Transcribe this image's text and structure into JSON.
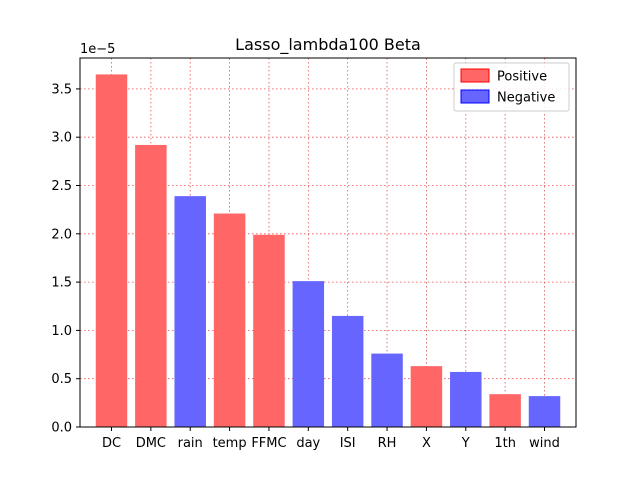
{
  "chart_data": {
    "type": "bar",
    "title": "Lasso_lambda100 Beta",
    "xlabel": "",
    "ylabel": "",
    "y_offset_text": "1e−5",
    "categories": [
      "DC",
      "DMC",
      "rain",
      "temp",
      "FFMC",
      "day",
      "ISI",
      "RH",
      "X",
      "Y",
      "1th",
      "wind"
    ],
    "values": [
      3.65,
      2.92,
      2.39,
      2.21,
      1.99,
      1.51,
      1.15,
      0.76,
      0.63,
      0.57,
      0.34,
      0.32
    ],
    "value_scale": "1e-5",
    "signs": [
      "Positive",
      "Positive",
      "Negative",
      "Positive",
      "Positive",
      "Negative",
      "Negative",
      "Negative",
      "Positive",
      "Negative",
      "Positive",
      "Negative"
    ],
    "ylim": [
      0,
      3.82
    ],
    "yticks": [
      "0.0",
      "0.5",
      "1.0",
      "1.5",
      "2.0",
      "2.5",
      "3.0",
      "3.5"
    ],
    "grid": true,
    "legend_position": "top-right",
    "legend": [
      {
        "label": "Positive",
        "color": "#ff6666"
      },
      {
        "label": "Negative",
        "color": "#6666ff"
      }
    ],
    "colors": {
      "Positive": "#ff6666",
      "Negative": "#6666ff",
      "Positive_edge": "#ff0000",
      "Negative_edge": "#0000ff",
      "grid": "#e05050"
    }
  }
}
